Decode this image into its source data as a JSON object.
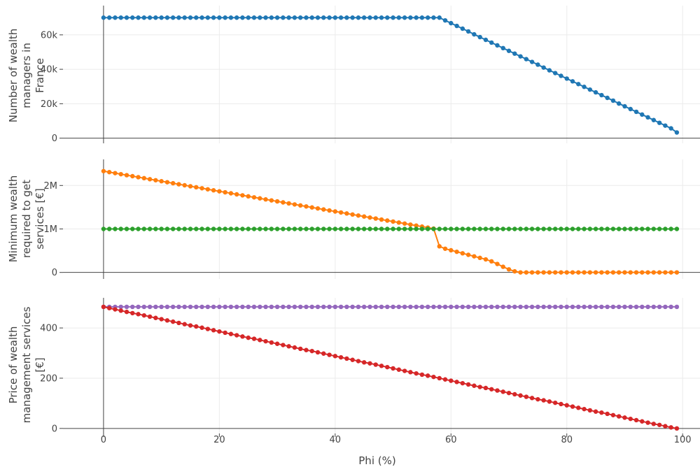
{
  "chart_data": {
    "type": "line",
    "x_axis": {
      "label": "Phi (%)",
      "range": [
        -7,
        103
      ],
      "ticks": [
        0,
        20,
        40,
        60,
        80,
        100
      ],
      "tick_labels": [
        "0",
        "20",
        "40",
        "60",
        "80",
        "100"
      ]
    },
    "x": [
      0,
      1,
      2,
      3,
      4,
      5,
      6,
      7,
      8,
      9,
      10,
      11,
      12,
      13,
      14,
      15,
      16,
      17,
      18,
      19,
      20,
      21,
      22,
      23,
      24,
      25,
      26,
      27,
      28,
      29,
      30,
      31,
      32,
      33,
      34,
      35,
      36,
      37,
      38,
      39,
      40,
      41,
      42,
      43,
      44,
      45,
      46,
      47,
      48,
      49,
      50,
      51,
      52,
      53,
      54,
      55,
      56,
      57,
      58,
      59,
      60,
      61,
      62,
      63,
      64,
      65,
      66,
      67,
      68,
      69,
      70,
      71,
      72,
      73,
      74,
      75,
      76,
      77,
      78,
      79,
      80,
      81,
      82,
      83,
      84,
      85,
      86,
      87,
      88,
      89,
      90,
      91,
      92,
      93,
      94,
      95,
      96,
      97,
      98,
      99
    ],
    "panels": [
      {
        "ylabel_lines": [
          "Number of wealth",
          "managers in",
          "France"
        ],
        "ylim": [
          -3000,
          77000
        ],
        "yticks": [
          0,
          20000,
          40000,
          60000
        ],
        "ytick_labels": [
          "0",
          "20k",
          "40k",
          "60k"
        ],
        "series": [
          {
            "color": "#1f77b4",
            "values": [
              70000,
              70000,
              70000,
              70000,
              70000,
              70000,
              70000,
              70000,
              70000,
              70000,
              70000,
              70000,
              70000,
              70000,
              70000,
              70000,
              70000,
              70000,
              70000,
              70000,
              70000,
              70000,
              70000,
              70000,
              70000,
              70000,
              70000,
              70000,
              70000,
              70000,
              70000,
              70000,
              70000,
              70000,
              70000,
              70000,
              70000,
              70000,
              70000,
              70000,
              70000,
              70000,
              70000,
              70000,
              70000,
              70000,
              70000,
              70000,
              70000,
              70000,
              70000,
              70000,
              70000,
              70000,
              70000,
              70000,
              70000,
              70000,
              70000,
              68400,
              66800,
              65200,
              63600,
              62000,
              60300,
              58700,
              57100,
              55500,
              53900,
              52300,
              50700,
              49100,
              47500,
              45900,
              44300,
              42700,
              41000,
              39400,
              37800,
              36200,
              34600,
              33000,
              31400,
              29800,
              28200,
              26600,
              25000,
              23400,
              21800,
              20100,
              18500,
              16900,
              15300,
              13700,
              12100,
              10500,
              8900,
              7300,
              5700,
              3300
            ]
          }
        ]
      },
      {
        "ylabel_lines": [
          "Minimum wealth",
          "required to get",
          "services [€]"
        ],
        "ylim": [
          -150000,
          2600000
        ],
        "yticks": [
          0,
          1000000,
          2000000
        ],
        "ytick_labels": [
          "0",
          "1M",
          "2M"
        ],
        "series": [
          {
            "color": "#ff7f0e",
            "values": [
              2330000,
              2307000,
              2284000,
              2260000,
              2237000,
              2214000,
              2191000,
              2168000,
              2144000,
              2121000,
              2098000,
              2075000,
              2052000,
              2028000,
              2005000,
              1982000,
              1959000,
              1936000,
              1912000,
              1889000,
              1866000,
              1843000,
              1820000,
              1796000,
              1773000,
              1750000,
              1727000,
              1704000,
              1680000,
              1657000,
              1634000,
              1611000,
              1588000,
              1564000,
              1541000,
              1518000,
              1495000,
              1472000,
              1448000,
              1425000,
              1402000,
              1379000,
              1356000,
              1332000,
              1309000,
              1286000,
              1263000,
              1240000,
              1216000,
              1193000,
              1170000,
              1147000,
              1124000,
              1100000,
              1077000,
              1054000,
              1031000,
              1008000,
              600000,
              545000,
              510000,
              475000,
              440000,
              405000,
              370000,
              335000,
              300000,
              255000,
              195000,
              130000,
              70000,
              25000,
              0,
              0,
              0,
              0,
              0,
              0,
              0,
              0,
              0,
              0,
              0,
              0,
              0,
              0,
              0,
              0,
              0,
              0,
              0,
              0,
              0,
              0,
              0,
              0,
              0,
              0,
              0,
              0
            ]
          },
          {
            "color": "#2ca02c",
            "values": [
              1000000,
              1000000,
              1000000,
              1000000,
              1000000,
              1000000,
              1000000,
              1000000,
              1000000,
              1000000,
              1000000,
              1000000,
              1000000,
              1000000,
              1000000,
              1000000,
              1000000,
              1000000,
              1000000,
              1000000,
              1000000,
              1000000,
              1000000,
              1000000,
              1000000,
              1000000,
              1000000,
              1000000,
              1000000,
              1000000,
              1000000,
              1000000,
              1000000,
              1000000,
              1000000,
              1000000,
              1000000,
              1000000,
              1000000,
              1000000,
              1000000,
              1000000,
              1000000,
              1000000,
              1000000,
              1000000,
              1000000,
              1000000,
              1000000,
              1000000,
              1000000,
              1000000,
              1000000,
              1000000,
              1000000,
              1000000,
              1000000,
              1000000,
              1000000,
              1000000,
              1000000,
              1000000,
              1000000,
              1000000,
              1000000,
              1000000,
              1000000,
              1000000,
              1000000,
              1000000,
              1000000,
              1000000,
              1000000,
              1000000,
              1000000,
              1000000,
              1000000,
              1000000,
              1000000,
              1000000,
              1000000,
              1000000,
              1000000,
              1000000,
              1000000,
              1000000,
              1000000,
              1000000,
              1000000,
              1000000,
              1000000,
              1000000,
              1000000,
              1000000,
              1000000,
              1000000,
              1000000,
              1000000,
              1000000,
              1000000
            ]
          }
        ]
      },
      {
        "ylabel_lines": [
          "Price of wealth",
          "management services",
          "[€]"
        ],
        "ylim": [
          -20,
          520
        ],
        "yticks": [
          0,
          200,
          400
        ],
        "ytick_labels": [
          "0",
          "200",
          "400"
        ],
        "series": [
          {
            "color": "#9467bd",
            "values": [
              484,
              484,
              484,
              484,
              484,
              484,
              484,
              484,
              484,
              484,
              484,
              484,
              484,
              484,
              484,
              484,
              484,
              484,
              484,
              484,
              484,
              484,
              484,
              484,
              484,
              484,
              484,
              484,
              484,
              484,
              484,
              484,
              484,
              484,
              484,
              484,
              484,
              484,
              484,
              484,
              484,
              484,
              484,
              484,
              484,
              484,
              484,
              484,
              484,
              484,
              484,
              484,
              484,
              484,
              484,
              484,
              484,
              484,
              484,
              484,
              484,
              484,
              484,
              484,
              484,
              484,
              484,
              484,
              484,
              484,
              484,
              484,
              484,
              484,
              484,
              484,
              484,
              484,
              484,
              484,
              484,
              484,
              484,
              484,
              484,
              484,
              484,
              484,
              484,
              484,
              484,
              484,
              484,
              484,
              484,
              484,
              484,
              484,
              484,
              484
            ]
          },
          {
            "color": "#d62728",
            "values": [
              484,
              479,
              474,
              469,
              464,
              459,
              455,
              450,
              445,
              440,
              435,
              430,
              425,
              420,
              415,
              410,
              406,
              401,
              396,
              391,
              386,
              381,
              376,
              371,
              366,
              361,
              357,
              352,
              347,
              342,
              337,
              332,
              327,
              322,
              317,
              312,
              308,
              303,
              298,
              293,
              288,
              283,
              278,
              273,
              268,
              263,
              259,
              254,
              249,
              244,
              239,
              234,
              229,
              224,
              219,
              214,
              210,
              205,
              200,
              195,
              190,
              185,
              180,
              175,
              170,
              165,
              161,
              156,
              151,
              146,
              141,
              136,
              131,
              126,
              121,
              116,
              112,
              107,
              102,
              97,
              92,
              87,
              82,
              77,
              72,
              67,
              63,
              58,
              53,
              48,
              43,
              38,
              33,
              28,
              23,
              18,
              14,
              9,
              4,
              0
            ]
          }
        ]
      }
    ]
  }
}
